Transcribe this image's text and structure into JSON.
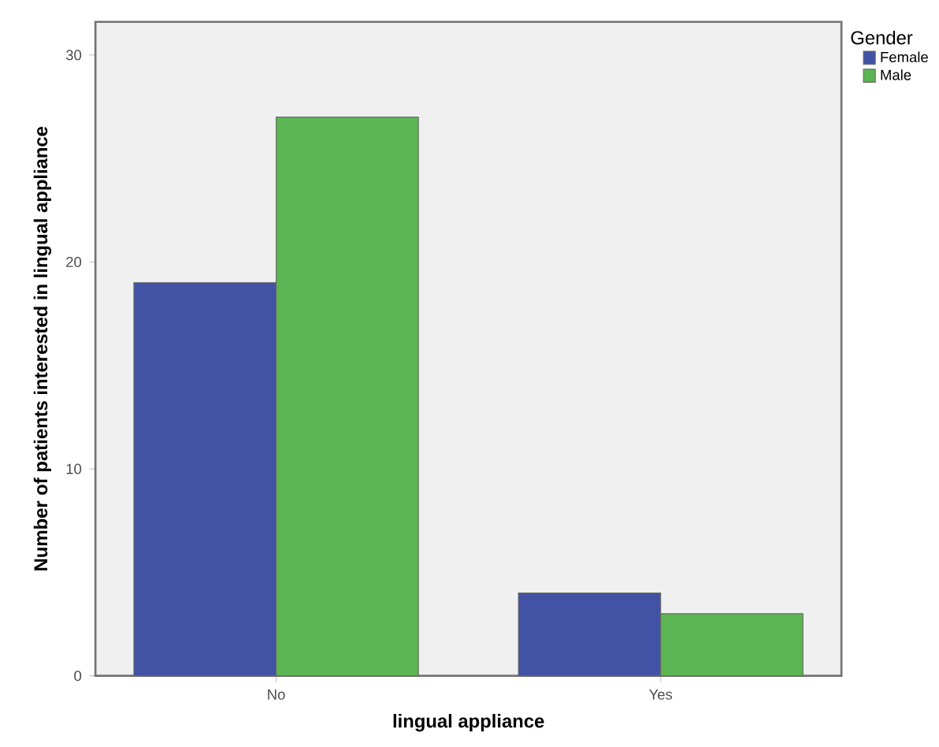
{
  "chart_data": {
    "type": "bar",
    "xlabel": "lingual appliance",
    "ylabel": "Number of patients interested in lingual appliance",
    "categories": [
      "No",
      "Yes"
    ],
    "series": [
      {
        "name": "Female",
        "color": "#4253a6",
        "values": [
          19,
          4
        ]
      },
      {
        "name": "Male",
        "color": "#5cb553",
        "values": [
          27,
          3
        ]
      }
    ],
    "legend_title": "Gender",
    "legend": "top right",
    "ylim": [
      0,
      31.6
    ],
    "yticks": [
      0,
      10,
      20,
      30
    ],
    "grid": false
  }
}
